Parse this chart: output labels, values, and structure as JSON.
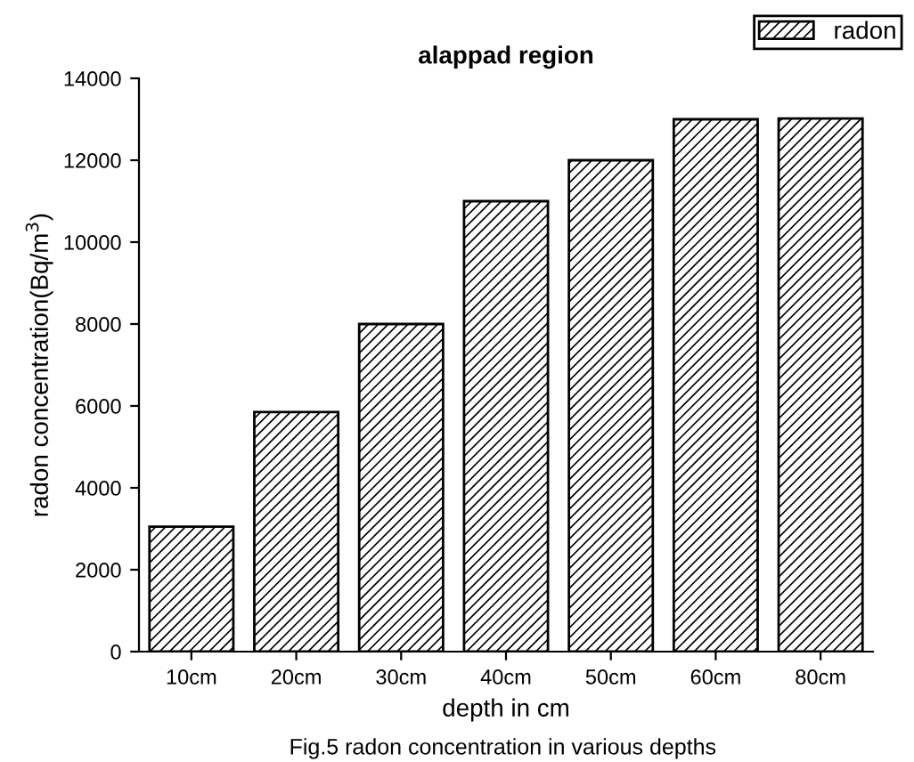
{
  "chart_data": {
    "type": "bar",
    "title": "alappad region",
    "xlabel": "depth in cm",
    "ylabel": "radon concentration(Bq/m$^{3}$)",
    "categories": [
      "10cm",
      "20cm",
      "30cm",
      "40cm",
      "50cm",
      "60cm",
      "80cm"
    ],
    "series": [
      {
        "name": "radon",
        "color": "#000000",
        "values": [
          3050,
          5850,
          8000,
          11000,
          12000,
          13000,
          13020
        ]
      }
    ],
    "ylim": [
      0,
      14000
    ],
    "yticks": [
      0,
      2000,
      4000,
      6000,
      8000,
      10000,
      12000,
      14000
    ],
    "legend": "top right",
    "grid": false,
    "annotations": [
      "Fig.5 radon concentration in various depths"
    ]
  }
}
